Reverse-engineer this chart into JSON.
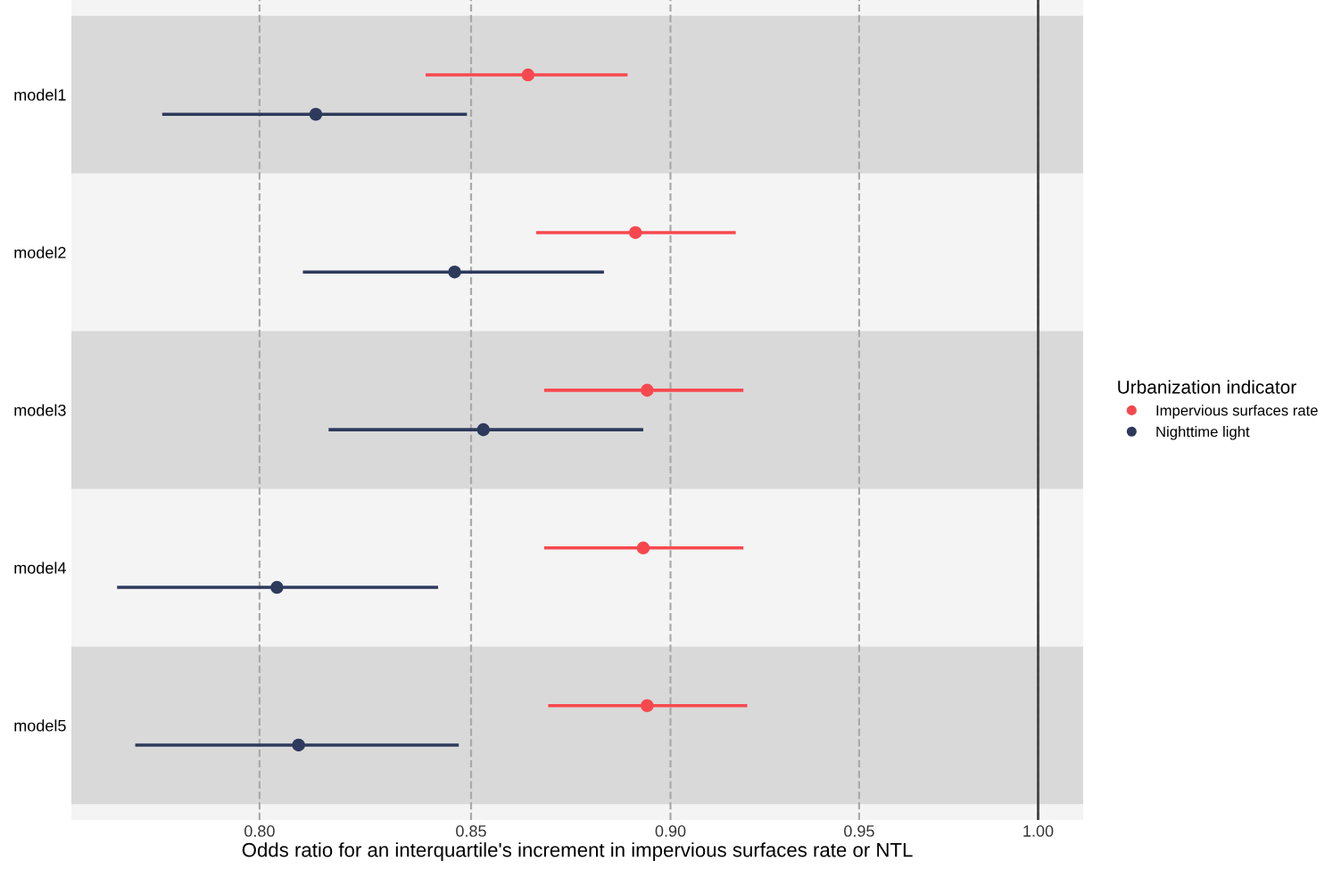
{
  "chart_data": {
    "type": "scatter",
    "orientation": "horizontal",
    "log": "x",
    "xlabel": "Odds ratio for an interquartile's increment in impervious surfaces rate or NTL",
    "legend_title": "Urbanization indicator",
    "legend": "right",
    "grid": "x",
    "marker": "circle",
    "categories": [
      "model1",
      "model2",
      "model3",
      "model4",
      "model5"
    ],
    "series": [
      {
        "name": "Impervious surfaces rate",
        "color": "#f8484f",
        "values": [
          0.864,
          0.891,
          0.894,
          0.893,
          0.894
        ],
        "errors": [
          [
            0.839,
            0.889
          ],
          [
            0.866,
            0.917
          ],
          [
            0.868,
            0.919
          ],
          [
            0.868,
            0.919
          ],
          [
            0.869,
            0.92
          ]
        ]
      },
      {
        "name": "Nighttime light",
        "color": "#2e3a5c",
        "values": [
          0.813,
          0.846,
          0.853,
          0.804,
          0.809
        ],
        "errors": [
          [
            0.778,
            0.849
          ],
          [
            0.81,
            0.883
          ],
          [
            0.816,
            0.893
          ],
          [
            0.768,
            0.842
          ],
          [
            0.772,
            0.847
          ]
        ]
      }
    ],
    "xlim": [
      0.758,
      1.013
    ],
    "xticks": [
      {
        "value": 0.8,
        "label": "0.80"
      },
      {
        "value": 0.85,
        "label": "0.85"
      },
      {
        "value": 0.9,
        "label": "0.90"
      },
      {
        "value": 0.95,
        "label": "0.95"
      },
      {
        "value": 1.0,
        "label": "1.00"
      }
    ],
    "ref_lines": [
      {
        "axis": "x",
        "value": 1.0,
        "label": null,
        "color": "#444444",
        "line_style": "solid"
      }
    ],
    "bands": [
      {
        "axis": "y",
        "from": "model1",
        "to": "model1",
        "label": null,
        "color": "#d9d9d9"
      },
      {
        "axis": "y",
        "from": "model3",
        "to": "model3",
        "label": null,
        "color": "#d9d9d9"
      },
      {
        "axis": "y",
        "from": "model5",
        "to": "model5",
        "label": null,
        "color": "#d9d9d9"
      }
    ]
  }
}
